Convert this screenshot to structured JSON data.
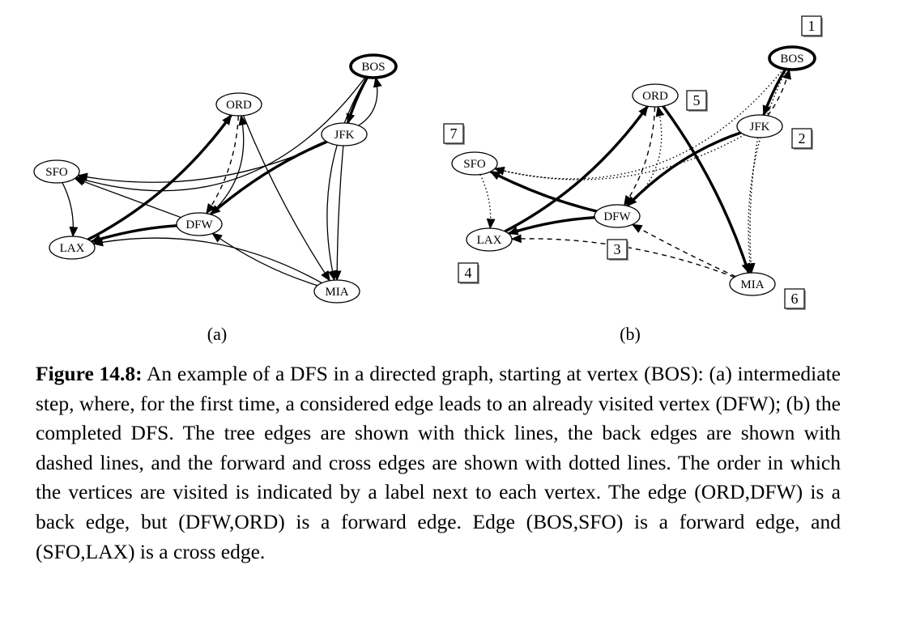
{
  "panels": [
    {
      "id": "a",
      "label": "(a)",
      "vertices": [
        {
          "id": "BOS",
          "label": "BOS",
          "start": true
        },
        {
          "id": "ORD",
          "label": "ORD"
        },
        {
          "id": "JFK",
          "label": "JFK"
        },
        {
          "id": "SFO",
          "label": "SFO"
        },
        {
          "id": "DFW",
          "label": "DFW"
        },
        {
          "id": "LAX",
          "label": "LAX"
        },
        {
          "id": "MIA",
          "label": "MIA"
        }
      ],
      "edges": [
        {
          "from": "BOS",
          "to": "JFK",
          "style": "thick"
        },
        {
          "from": "JFK",
          "to": "DFW",
          "style": "thick"
        },
        {
          "from": "DFW",
          "to": "LAX",
          "style": "thick"
        },
        {
          "from": "LAX",
          "to": "ORD",
          "style": "thick"
        },
        {
          "from": "ORD",
          "to": "DFW",
          "style": "dashed"
        },
        {
          "from": "JFK",
          "to": "BOS",
          "style": "normal"
        },
        {
          "from": "BOS",
          "to": "SFO",
          "style": "normal"
        },
        {
          "from": "JFK",
          "to": "SFO",
          "style": "normal"
        },
        {
          "from": "BOS",
          "to": "MIA",
          "style": "normal"
        },
        {
          "from": "JFK",
          "to": "MIA",
          "style": "normal"
        },
        {
          "from": "ORD",
          "to": "MIA",
          "style": "normal"
        },
        {
          "from": "DFW",
          "to": "ORD",
          "style": "normal"
        },
        {
          "from": "DFW",
          "to": "SFO",
          "style": "normal"
        },
        {
          "from": "SFO",
          "to": "LAX",
          "style": "normal"
        },
        {
          "from": "MIA",
          "to": "DFW",
          "style": "normal"
        },
        {
          "from": "MIA",
          "to": "LAX",
          "style": "normal"
        }
      ]
    },
    {
      "id": "b",
      "label": "(b)",
      "vertices": [
        {
          "id": "BOS",
          "label": "BOS",
          "start": true,
          "order": "1"
        },
        {
          "id": "ORD",
          "label": "ORD",
          "order": "5"
        },
        {
          "id": "JFK",
          "label": "JFK",
          "order": "2"
        },
        {
          "id": "SFO",
          "label": "SFO",
          "order": "7"
        },
        {
          "id": "DFW",
          "label": "DFW",
          "order": "3"
        },
        {
          "id": "LAX",
          "label": "LAX",
          "order": "4"
        },
        {
          "id": "MIA",
          "label": "MIA",
          "order": "6"
        }
      ],
      "edges": [
        {
          "from": "BOS",
          "to": "JFK",
          "style": "thick"
        },
        {
          "from": "JFK",
          "to": "DFW",
          "style": "thick"
        },
        {
          "from": "DFW",
          "to": "LAX",
          "style": "thick"
        },
        {
          "from": "LAX",
          "to": "ORD",
          "style": "thick"
        },
        {
          "from": "ORD",
          "to": "MIA",
          "style": "thick"
        },
        {
          "from": "DFW",
          "to": "SFO",
          "style": "thick"
        },
        {
          "from": "JFK",
          "to": "BOS",
          "style": "dashed"
        },
        {
          "from": "ORD",
          "to": "DFW",
          "style": "dashed"
        },
        {
          "from": "MIA",
          "to": "DFW",
          "style": "dashed"
        },
        {
          "from": "MIA",
          "to": "LAX",
          "style": "dashed"
        },
        {
          "from": "BOS",
          "to": "SFO",
          "style": "dotted"
        },
        {
          "from": "JFK",
          "to": "SFO",
          "style": "dotted"
        },
        {
          "from": "BOS",
          "to": "MIA",
          "style": "dotted"
        },
        {
          "from": "JFK",
          "to": "MIA",
          "style": "dotted"
        },
        {
          "from": "DFW",
          "to": "ORD",
          "style": "dotted"
        },
        {
          "from": "SFO",
          "to": "LAX",
          "style": "dotted"
        }
      ]
    }
  ],
  "caption": {
    "label": "Figure 14.8:",
    "text": " An example of a DFS in a directed graph, starting at vertex (BOS): (a) intermediate step, where, for the first time, a considered edge leads to an already visited vertex (DFW); (b) the completed DFS. The tree edges are shown with thick lines, the back edges are shown with dashed lines, and the forward and cross edges are shown with dotted lines. The order in which the vertices are visited is indicated by a label next to each vertex. The edge (ORD,DFW) is a back edge, but (DFW,ORD) is a forward edge. Edge (BOS,SFO) is a forward edge, and (SFO,LAX) is a cross edge."
  }
}
